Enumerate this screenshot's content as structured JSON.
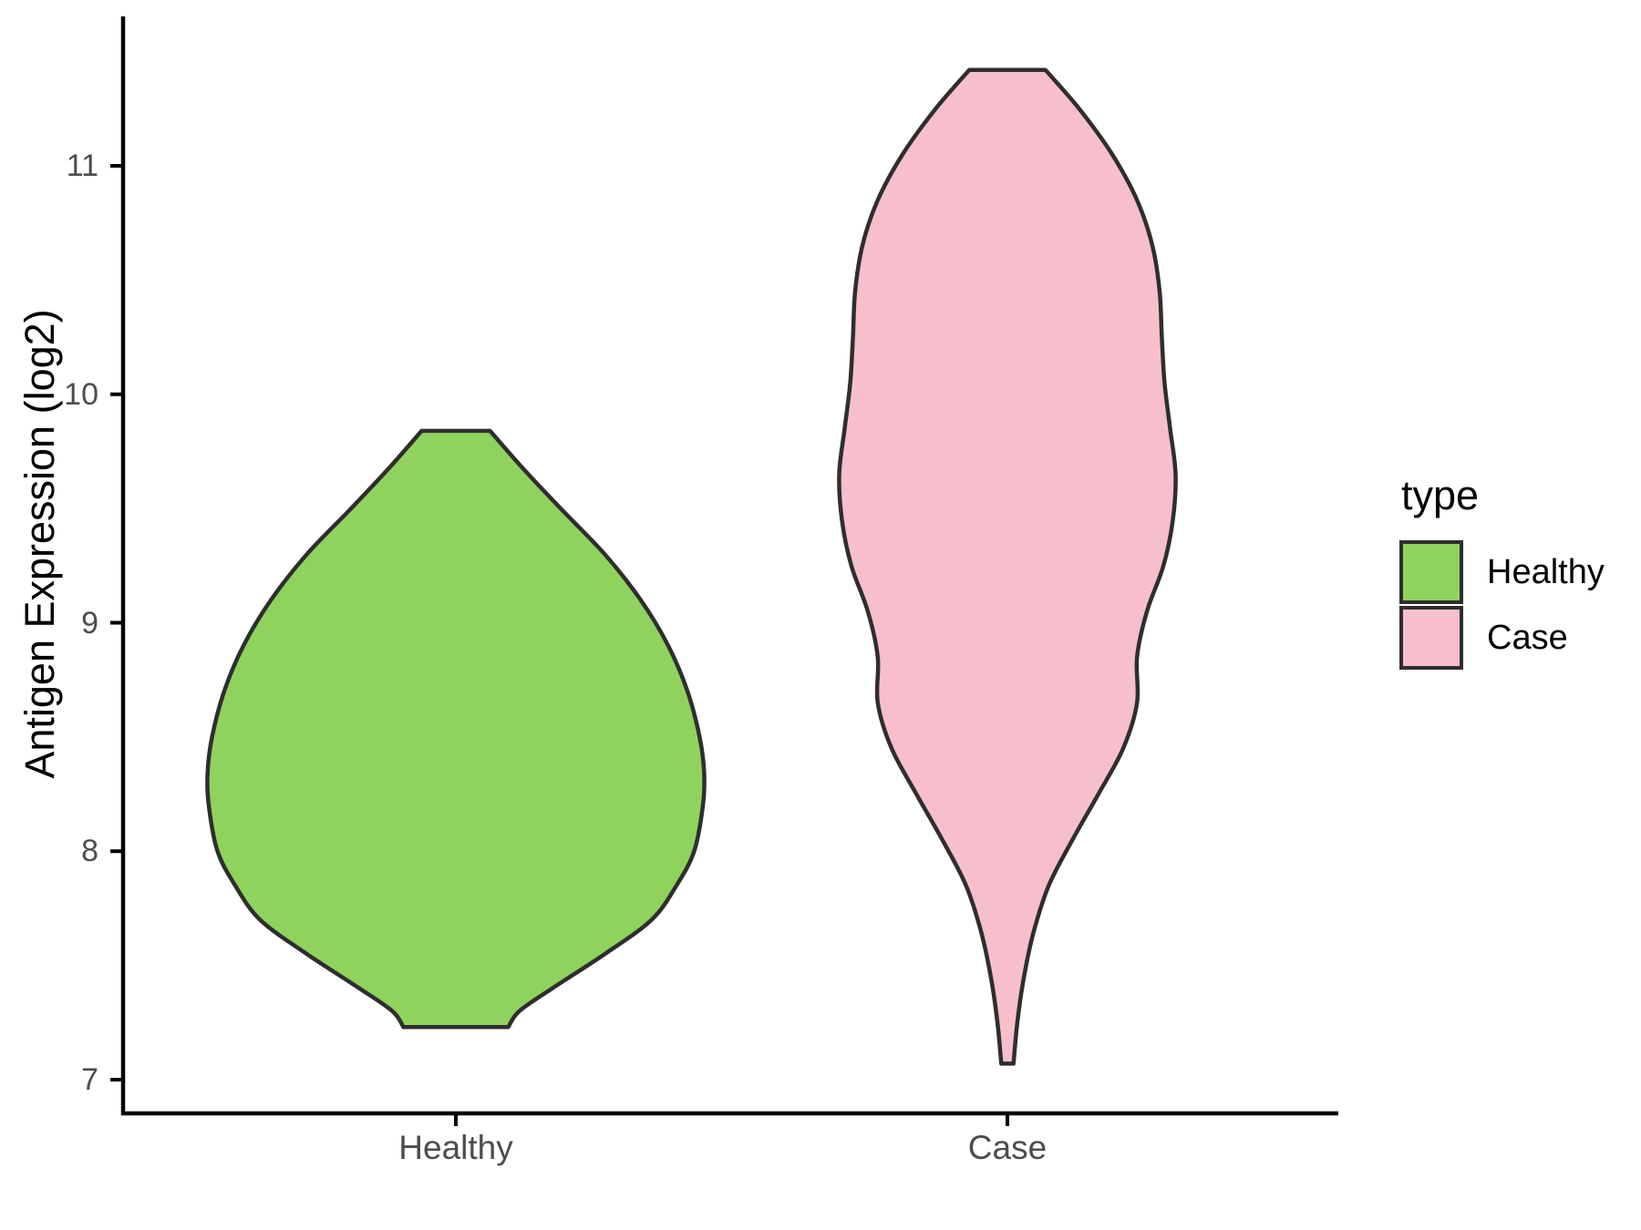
{
  "chart": {
    "ylabel": "Antigen Expression (log2)",
    "y_tick_labels": [
      "7",
      "8",
      "9",
      "10",
      "11"
    ],
    "x_labels": [
      "Healthy",
      "Case"
    ],
    "legend": {
      "title": "type",
      "entries": [
        {
          "label": "Healthy",
          "color": "#8fd35e"
        },
        {
          "label": "Case",
          "color": "#f7bfcb"
        }
      ]
    }
  },
  "chart_data": {
    "type": "violin",
    "title": "",
    "xlabel": "",
    "ylabel": "Antigen Expression (log2)",
    "categories": [
      "Healthy",
      "Case"
    ],
    "yticks": [
      7,
      8,
      9,
      10,
      11
    ],
    "ylim": [
      6.85,
      11.65
    ],
    "grid": false,
    "legend_title": "type",
    "legend_position": "right",
    "outline_color": "#2e2e2e",
    "axis_color": "#000000",
    "tick_label_color": "#4d4d4d",
    "series": [
      {
        "name": "Healthy",
        "color": "#8fd35e",
        "min_value": 7.23,
        "max_value": 9.84,
        "profile": [
          [
            9.84,
            0.062
          ],
          [
            9.68,
            0.12
          ],
          [
            9.5,
            0.19
          ],
          [
            9.3,
            0.27
          ],
          [
            9.1,
            0.335
          ],
          [
            8.9,
            0.385
          ],
          [
            8.7,
            0.42
          ],
          [
            8.5,
            0.442
          ],
          [
            8.35,
            0.45
          ],
          [
            8.2,
            0.448
          ],
          [
            8.0,
            0.432
          ],
          [
            7.85,
            0.4
          ],
          [
            7.7,
            0.355
          ],
          [
            7.55,
            0.27
          ],
          [
            7.4,
            0.175
          ],
          [
            7.3,
            0.115
          ],
          [
            7.23,
            0.095
          ]
        ]
      },
      {
        "name": "Case",
        "color": "#f7bfcb",
        "min_value": 7.07,
        "max_value": 11.42,
        "profile": [
          [
            11.42,
            0.069
          ],
          [
            11.25,
            0.13
          ],
          [
            11.05,
            0.19
          ],
          [
            10.85,
            0.235
          ],
          [
            10.65,
            0.263
          ],
          [
            10.45,
            0.276
          ],
          [
            10.25,
            0.28
          ],
          [
            10.05,
            0.285
          ],
          [
            9.85,
            0.295
          ],
          [
            9.65,
            0.305
          ],
          [
            9.45,
            0.3
          ],
          [
            9.25,
            0.283
          ],
          [
            9.05,
            0.253
          ],
          [
            8.85,
            0.235
          ],
          [
            8.65,
            0.235
          ],
          [
            8.45,
            0.21
          ],
          [
            8.25,
            0.165
          ],
          [
            8.05,
            0.118
          ],
          [
            7.85,
            0.075
          ],
          [
            7.65,
            0.048
          ],
          [
            7.45,
            0.03
          ],
          [
            7.25,
            0.018
          ],
          [
            7.07,
            0.011
          ]
        ]
      }
    ]
  }
}
